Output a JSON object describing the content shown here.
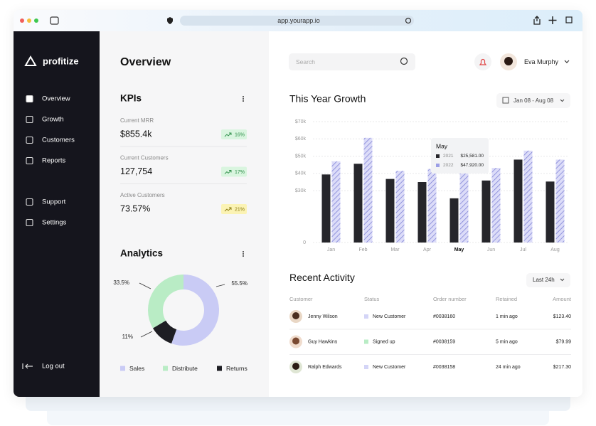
{
  "browser": {
    "url": "app.yourapp.io"
  },
  "sidebar": {
    "brand": "profitize",
    "nav": [
      "Overview",
      "Growth",
      "Customers",
      "Reports",
      "Support",
      "Settings"
    ],
    "logout": "Log out"
  },
  "overview": {
    "title": "Overview"
  },
  "kpis": {
    "title": "KPIs",
    "items": [
      {
        "label": "Current MRR",
        "value": "$855.4k",
        "change": "16%"
      },
      {
        "label": "Current Customers",
        "value": "127,754",
        "change": "17%"
      },
      {
        "label": "Active Customers",
        "value": "73.57%",
        "change": "21%"
      }
    ]
  },
  "analytics": {
    "title": "Analytics",
    "type": "pie",
    "categories": [
      "Sales",
      "Distribute",
      "Returns"
    ],
    "values": [
      55.5,
      33.5,
      11
    ],
    "value_labels": [
      "55.5%",
      "33.5%",
      "11%"
    ],
    "colors": [
      "#c9cbf5",
      "#b9ecc5",
      "#1e1e24"
    ]
  },
  "search": {
    "placeholder": "Search"
  },
  "user": {
    "name": "Eva Murphy"
  },
  "growth": {
    "title": "This Year Growth",
    "range": "Jan 08 - Aug 08",
    "type": "bar",
    "categories": [
      "Jan",
      "Feb",
      "Mar",
      "Apr",
      "May",
      "Jun",
      "Jul",
      "Aug"
    ],
    "series": [
      {
        "name": "2021",
        "color": "#26262b",
        "values": [
          39400,
          45600,
          36800,
          35000,
          25581,
          35900,
          48000,
          35300
        ]
      },
      {
        "name": "2022",
        "color": "#d4d5f7",
        "values": [
          47000,
          60600,
          41500,
          42600,
          47920,
          43200,
          53200,
          48000
        ]
      }
    ],
    "ylim": [
      0,
      70000
    ],
    "yticks": [
      0,
      {
        "value": 30000,
        "label": "$30k"
      },
      {
        "value": 40000,
        "label": "$40k"
      },
      {
        "value": 50000,
        "label": "$50k"
      },
      {
        "value": 60000,
        "label": "$60k"
      },
      {
        "value": 70000,
        "label": "$70k"
      }
    ],
    "grid": true,
    "tooltip": {
      "title": "May",
      "values": [
        "$25,581.00",
        "$47,920.00"
      ]
    }
  },
  "activity": {
    "title": "Recent Activity",
    "range": "Last 24h",
    "columns": [
      "Customer",
      "Status",
      "Order number",
      "Retained",
      "Amount"
    ],
    "rows": [
      [
        "Jenny Wilson",
        "New Customer",
        "#0038160",
        "1 min ago",
        "$123.40"
      ],
      [
        "Guy Hawkins",
        "Signed up",
        "#0038159",
        "5 min ago",
        "$79.99"
      ],
      [
        "Ralph Edwards",
        "New Customer",
        "#0038158",
        "24 min ago",
        "$217.30"
      ]
    ]
  }
}
